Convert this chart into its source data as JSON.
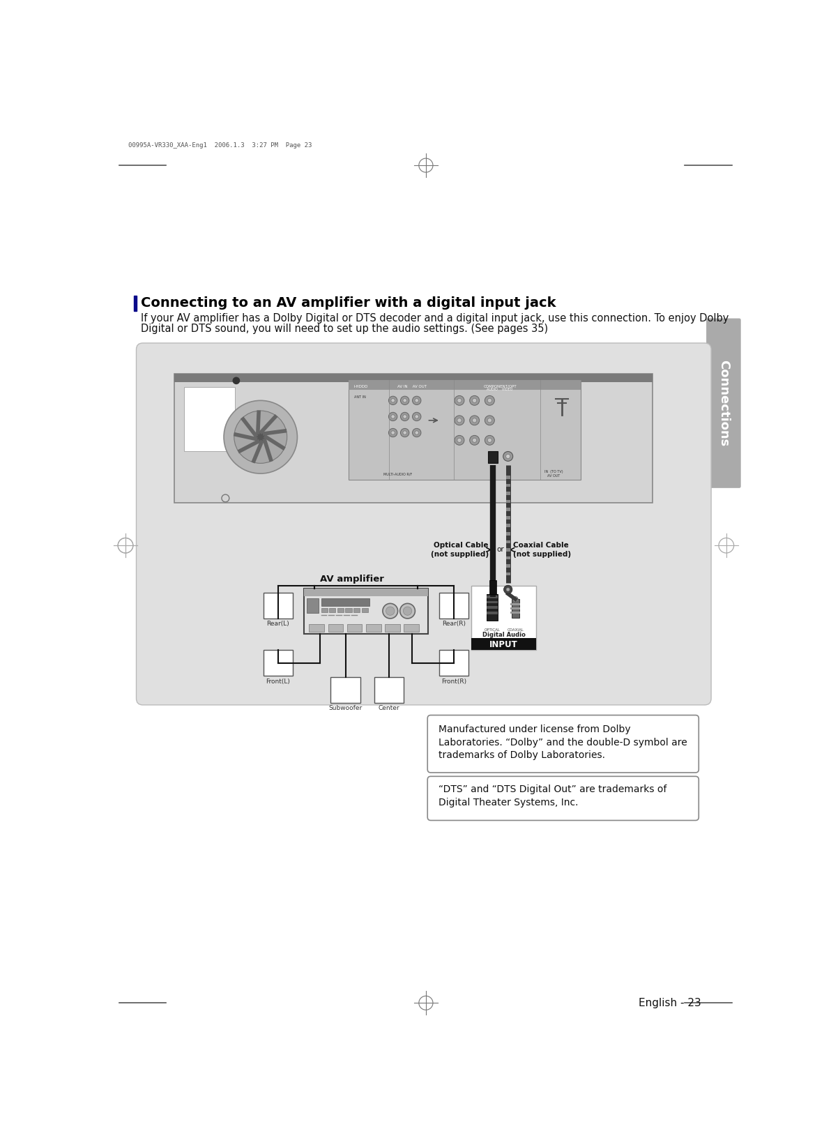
{
  "page_header": "00995A-VR330_XAA-Eng1  2006.1.3  3:27 PM  Page 23",
  "section_title": "Connecting to an AV amplifier with a digital input jack",
  "section_text_line1": "If your AV amplifier has a Dolby Digital or DTS decoder and a digital input jack, use this connection. To enjoy Dolby",
  "section_text_line2": "Digital or DTS sound, you will need to set up the audio settings. (See pages 35)",
  "tab_text": "Connections",
  "page_number": "English - 23",
  "optical_cable_label1": "Optical Cable",
  "optical_cable_label2": "(not supplied)",
  "coaxial_cable_label1": "Coaxial Cable",
  "coaxial_cable_label2": "(not supplied)",
  "or_label": "or",
  "av_amplifier_label": "AV amplifier",
  "digital_audio_label": "Digital Audio",
  "input_label": "INPUT",
  "rear_l_label": "Rear(L)",
  "rear_r_label": "Rear(R)",
  "front_l_label": "Front(L)",
  "front_r_label": "Front(R)",
  "subwoofer_label": "Subwoofer",
  "center_label": "Center",
  "dolby_text_line1": "Manufactured under license from Dolby",
  "dolby_text_line2": "Laboratories. “Dolby” and the double-D symbol are",
  "dolby_text_line3": "trademarks of Dolby Laboratories.",
  "dts_text_line1": "“DTS” and “DTS Digital Out” are trademarks of",
  "dts_text_line2": "Digital Theater Systems, Inc.",
  "bg_color": "#ffffff",
  "tab_bg": "#aaaaaa",
  "diagram_bg": "#e0e0e0",
  "device_panel_bg": "#bebebe",
  "device_strip_bg": "#7a7a7a",
  "connector_panel_bg": "#c0c0c0"
}
